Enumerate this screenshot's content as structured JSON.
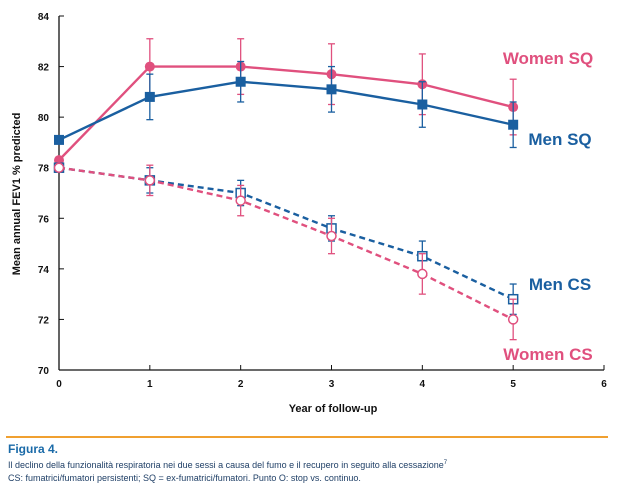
{
  "chart_data": {
    "type": "line",
    "xlabel": "Year of follow-up",
    "ylabel": "Mean annual FEV1 % predicted",
    "xlim": [
      0,
      6
    ],
    "ylim": [
      70,
      84
    ],
    "x_ticks": [
      "0",
      "1",
      "2",
      "3",
      "4",
      "5",
      "6"
    ],
    "y_ticks": [
      "70",
      "72",
      "74",
      "76",
      "78",
      "80",
      "82",
      "84"
    ],
    "grid": false,
    "legend": "inline labels at right end of lines",
    "series": [
      {
        "name": "Women SQ",
        "color": "#e0507e",
        "marker": "filled-circle",
        "dash": "solid",
        "x": [
          0,
          1,
          2,
          3,
          4,
          5
        ],
        "y": [
          78.3,
          82.0,
          82.0,
          81.7,
          81.3,
          80.4
        ],
        "err": [
          null,
          1.1,
          1.1,
          1.2,
          1.2,
          1.1
        ]
      },
      {
        "name": "Men SQ",
        "color": "#1a5fa0",
        "marker": "filled-square",
        "dash": "solid",
        "x": [
          0,
          1,
          2,
          3,
          4,
          5
        ],
        "y": [
          79.1,
          80.8,
          81.4,
          81.1,
          80.5,
          79.7
        ],
        "err": [
          null,
          0.9,
          0.8,
          0.9,
          0.9,
          0.9
        ]
      },
      {
        "name": "Men CS",
        "color": "#1a5fa0",
        "marker": "open-square",
        "dash": "dashed",
        "x": [
          0,
          1,
          2,
          3,
          4,
          5
        ],
        "y": [
          78.0,
          77.5,
          77.0,
          75.6,
          74.5,
          72.8
        ],
        "err": [
          null,
          0.5,
          0.5,
          0.5,
          0.6,
          0.6
        ]
      },
      {
        "name": "Women CS",
        "color": "#e0507e",
        "marker": "open-circle",
        "dash": "dashed",
        "x": [
          0,
          1,
          2,
          3,
          4,
          5
        ],
        "y": [
          78.0,
          77.5,
          76.7,
          75.3,
          73.8,
          72.0
        ],
        "err": [
          null,
          0.6,
          0.6,
          0.7,
          0.8,
          0.8
        ]
      }
    ]
  },
  "caption": {
    "title": "Figura 4.",
    "line1": "Il declino della funzionalità respiratoria nei due sessi a causa del fumo e il recupero in seguito alla cessazione",
    "line1_ref": "7",
    "line2": "CS: fumatrici/fumatori persistenti; SQ = ex-fumatrici/fumatori. Punto O: stop vs. continuo."
  },
  "colors": {
    "accent_rule": "#f0a030",
    "caption_text": "#1a6aa8",
    "pink": "#e0507e",
    "blue": "#1a5fa0"
  }
}
